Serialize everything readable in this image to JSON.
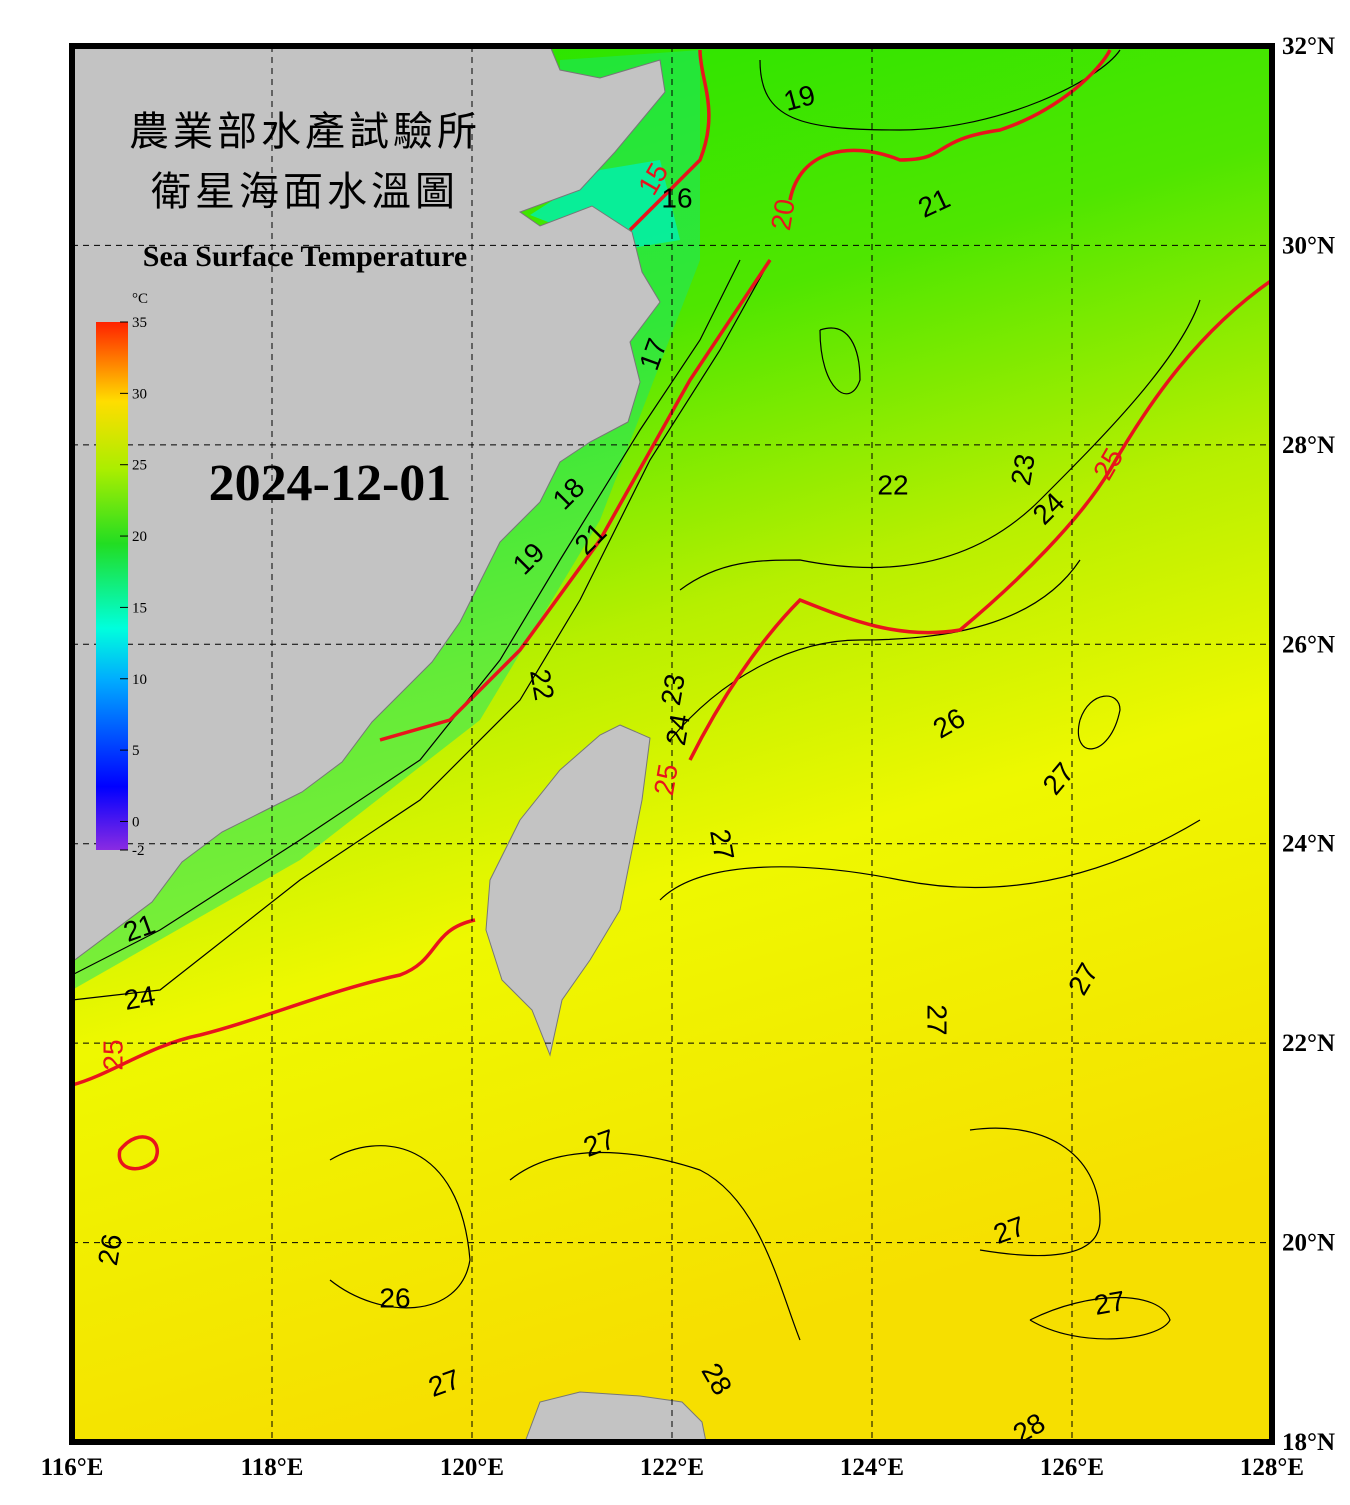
{
  "title_zh_1": "農業部水產試驗所",
  "title_zh_2": "衛星海面水溫圖",
  "title_en": "Sea Surface Temperature",
  "date": "2024-12-01",
  "colorbar": {
    "unit": "°C",
    "range": [
      -2,
      35
    ],
    "ticks": [
      -2,
      0,
      5,
      10,
      15,
      20,
      25,
      30,
      35
    ]
  },
  "map": {
    "lon_labels": [
      "116°E",
      "118°E",
      "120°E",
      "122°E",
      "124°E",
      "126°E",
      "128°E"
    ],
    "lat_labels": [
      "18°N",
      "20°N",
      "22°N",
      "24°N",
      "26°N",
      "28°N",
      "30°N",
      "32°N"
    ],
    "contour_labels": [
      19,
      21,
      16,
      15,
      20,
      17,
      18,
      21,
      19,
      22,
      23,
      24,
      25,
      22,
      23,
      24,
      26,
      27,
      27,
      25,
      27,
      27,
      27,
      27,
      27,
      26,
      26,
      27,
      28,
      28,
      25,
      21,
      24
    ]
  }
}
